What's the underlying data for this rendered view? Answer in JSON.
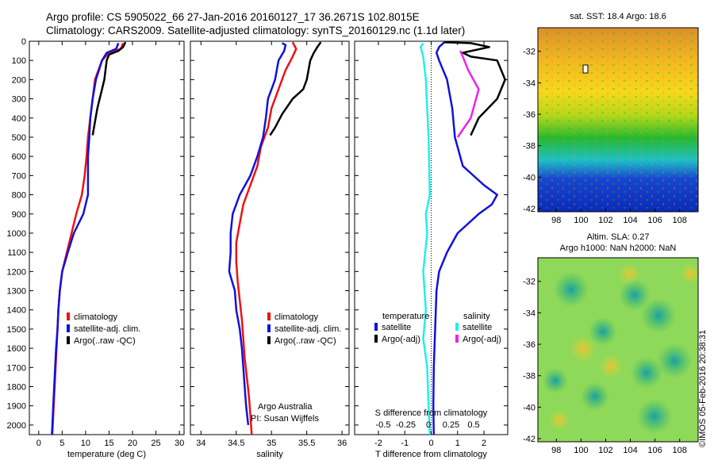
{
  "header": {
    "line1": "Argo profile: CS 5905022_66 27-Jan-2016 20160127_17 36.2671S 102.8015E",
    "line2": "Climatology: CARS2009. Satellite-adjusted climatology: synTS_20160129.nc (1.1d later)"
  },
  "credit": "©IMOS 05-Feb-2016 20:38:31",
  "colors": {
    "climatology": "#ee1111",
    "satellite": "#1111dd",
    "argo": "#000000",
    "argo_salinity_diff": "#ee22ee",
    "satellite_salinity_diff": "#22eeee"
  },
  "chart_data": [
    {
      "type": "line",
      "name": "temperature-profile",
      "xlabel": "temperature (deg C)",
      "xlim": [
        -2,
        31
      ],
      "xticks": [
        0,
        5,
        10,
        15,
        20,
        25,
        30
      ],
      "ylim": [
        2050,
        0
      ],
      "yticks": [
        0,
        100,
        200,
        300,
        400,
        500,
        600,
        700,
        800,
        900,
        1000,
        1100,
        1200,
        1300,
        1400,
        1500,
        1600,
        1700,
        1800,
        1900,
        2000
      ],
      "legend": {
        "position": "lower-center",
        "entries": [
          "climatology",
          "satellite-adj. clim.",
          "Argo(..raw -QC)"
        ]
      },
      "series": [
        {
          "name": "climatology",
          "color": "#ee1111",
          "points": [
            [
              18,
              10
            ],
            [
              17.5,
              40
            ],
            [
              15,
              60
            ],
            [
              13.5,
              100
            ],
            [
              12,
              200
            ],
            [
              11.5,
              300
            ],
            [
              11,
              400
            ],
            [
              10.5,
              500
            ],
            [
              10.2,
              600
            ],
            [
              9.8,
              700
            ],
            [
              9.2,
              800
            ],
            [
              8,
              900
            ],
            [
              7,
              1000
            ],
            [
              6,
              1100
            ],
            [
              5,
              1200
            ],
            [
              4.5,
              1300
            ],
            [
              4.2,
              1400
            ],
            [
              4,
              1500
            ],
            [
              3.8,
              1600
            ],
            [
              3.6,
              1700
            ],
            [
              3.4,
              1800
            ],
            [
              3.2,
              1900
            ],
            [
              3,
              2000
            ],
            [
              2.9,
              2050
            ]
          ]
        },
        {
          "name": "satellite-adj. clim.",
          "color": "#1111dd",
          "points": [
            [
              17,
              10
            ],
            [
              16.5,
              40
            ],
            [
              14.5,
              60
            ],
            [
              13.5,
              100
            ],
            [
              12.2,
              200
            ],
            [
              11.5,
              300
            ],
            [
              11,
              400
            ],
            [
              10.8,
              500
            ],
            [
              10.5,
              600
            ],
            [
              10.5,
              700
            ],
            [
              10.5,
              800
            ],
            [
              9.5,
              900
            ],
            [
              7.5,
              1000
            ],
            [
              6.2,
              1100
            ],
            [
              5,
              1200
            ],
            [
              4.5,
              1300
            ],
            [
              4.2,
              1400
            ],
            [
              4,
              1500
            ],
            [
              3.7,
              1600
            ],
            [
              3.5,
              1700
            ],
            [
              3.3,
              1800
            ],
            [
              3.1,
              1900
            ],
            [
              2.9,
              2000
            ],
            [
              2.8,
              2050
            ]
          ]
        },
        {
          "name": "Argo(..raw -QC)",
          "color": "#000000",
          "points": [
            [
              18.5,
              5
            ],
            [
              18,
              30
            ],
            [
              17,
              50
            ],
            [
              15,
              70
            ],
            [
              14.5,
              100
            ],
            [
              14,
              200
            ],
            [
              13.5,
              250
            ],
            [
              13,
              300
            ],
            [
              12.5,
              350
            ],
            [
              12,
              420
            ],
            [
              11.5,
              490
            ]
          ]
        }
      ]
    },
    {
      "type": "line",
      "name": "salinity-profile",
      "xlabel": "salinity",
      "xlim": [
        33.85,
        36.1
      ],
      "xticks": [
        34,
        34.5,
        35,
        35.5,
        36
      ],
      "ylim": [
        2050,
        0
      ],
      "legend": {
        "position": "lower-center",
        "entries": [
          "climatology",
          "satellite-adj. clim.",
          "Argo(..raw -QC)"
        ]
      },
      "annotation": [
        "Argo Australia",
        "PI: Susan Wijffels"
      ],
      "series": [
        {
          "name": "climatology",
          "color": "#ee1111",
          "points": [
            [
              35.3,
              5
            ],
            [
              35.35,
              40
            ],
            [
              35.3,
              80
            ],
            [
              35.2,
              150
            ],
            [
              35.1,
              250
            ],
            [
              35,
              350
            ],
            [
              34.95,
              450
            ],
            [
              34.85,
              550
            ],
            [
              34.8,
              650
            ],
            [
              34.7,
              750
            ],
            [
              34.6,
              850
            ],
            [
              34.55,
              950
            ],
            [
              34.5,
              1050
            ],
            [
              34.5,
              1150
            ],
            [
              34.52,
              1250
            ],
            [
              34.55,
              1350
            ],
            [
              34.58,
              1450
            ],
            [
              34.6,
              1550
            ],
            [
              34.62,
              1650
            ],
            [
              34.65,
              1750
            ],
            [
              34.68,
              1850
            ],
            [
              34.7,
              1950
            ],
            [
              34.72,
              2050
            ]
          ]
        },
        {
          "name": "satellite-adj. clim.",
          "color": "#1111dd",
          "points": [
            [
              35.15,
              10
            ],
            [
              35.2,
              20
            ],
            [
              35.18,
              50
            ],
            [
              35.1,
              100
            ],
            [
              35.05,
              200
            ],
            [
              34.95,
              300
            ],
            [
              34.92,
              400
            ],
            [
              34.88,
              500
            ],
            [
              34.8,
              600
            ],
            [
              34.7,
              700
            ],
            [
              34.55,
              800
            ],
            [
              34.45,
              900
            ],
            [
              34.42,
              1000
            ],
            [
              34.42,
              1100
            ],
            [
              34.4,
              1200
            ],
            [
              34.48,
              1300
            ],
            [
              34.5,
              1400
            ],
            [
              34.55,
              1500
            ],
            [
              34.58,
              1600
            ],
            [
              34.6,
              1700
            ],
            [
              34.62,
              1800
            ],
            [
              34.64,
              1900
            ],
            [
              34.67,
              2000
            ]
          ]
        },
        {
          "name": "Argo(..raw -QC)",
          "color": "#000000",
          "points": [
            [
              35.7,
              5
            ],
            [
              35.65,
              30
            ],
            [
              35.6,
              60
            ],
            [
              35.55,
              100
            ],
            [
              35.5,
              200
            ],
            [
              35.45,
              250
            ],
            [
              35.3,
              300
            ],
            [
              35.15,
              380
            ],
            [
              35.05,
              450
            ],
            [
              34.98,
              490
            ]
          ]
        }
      ]
    },
    {
      "type": "line",
      "name": "difference-profile",
      "xlabel": "T difference from climatology",
      "xlabel2": "S difference from climatology",
      "xlim": [
        -2.9,
        2.9
      ],
      "xticks": [
        -2,
        -1,
        0,
        1,
        2
      ],
      "xticks2_labels": [
        "-0.5",
        "-0.25",
        "0",
        "0.25",
        "0.5"
      ],
      "ylim": [
        2050,
        0
      ],
      "legend": {
        "position": "lower-center",
        "temperature_title": "temperature",
        "salinity_title": "salinity",
        "temperature_entries": [
          "satellite",
          "Argo(-adj)"
        ],
        "salinity_entries": [
          "satellite",
          "Argo(-adj)"
        ]
      },
      "series": [
        {
          "name": "temperature satellite",
          "color": "#1111dd",
          "points": [
            [
              0.5,
              5
            ],
            [
              0.3,
              30
            ],
            [
              0.2,
              60
            ],
            [
              0.3,
              100
            ],
            [
              0.6,
              200
            ],
            [
              0.8,
              350
            ],
            [
              0.9,
              500
            ],
            [
              1.2,
              650
            ],
            [
              2,
              750
            ],
            [
              2.5,
              800
            ],
            [
              2.3,
              850
            ],
            [
              1.8,
              900
            ],
            [
              1,
              1000
            ],
            [
              0.6,
              1100
            ],
            [
              0.3,
              1200
            ],
            [
              0.2,
              1300
            ],
            [
              0.15,
              1500
            ],
            [
              0.1,
              1700
            ],
            [
              0.08,
              1900
            ],
            [
              0.1,
              2050
            ]
          ]
        },
        {
          "name": "temperature Argo(-adj)",
          "color": "#000000",
          "points": [
            [
              0.5,
              5
            ],
            [
              1.5,
              10
            ],
            [
              2.2,
              30
            ],
            [
              1.2,
              60
            ],
            [
              1.5,
              80
            ],
            [
              2.5,
              100
            ],
            [
              2.8,
              200
            ],
            [
              2.5,
              300
            ],
            [
              1.8,
              400
            ],
            [
              1.5,
              490
            ]
          ]
        },
        {
          "name": "salinity satellite",
          "color": "#22eeee",
          "points": [
            [
              -0.3,
              10
            ],
            [
              -0.4,
              30
            ],
            [
              -0.3,
              80
            ],
            [
              -0.2,
              200
            ],
            [
              -0.1,
              500
            ],
            [
              -0.05,
              800
            ],
            [
              -0.2,
              900
            ],
            [
              -0.15,
              1000
            ],
            [
              -0.3,
              1200
            ],
            [
              -0.2,
              1400
            ],
            [
              -0.3,
              1550
            ],
            [
              -0.15,
              1700
            ],
            [
              -0.1,
              1900
            ],
            [
              -0.05,
              2050
            ]
          ]
        },
        {
          "name": "salinity Argo(-adj)",
          "color": "#ee22ee",
          "points": [
            [
              1.1,
              50
            ],
            [
              1.2,
              80
            ],
            [
              1.4,
              150
            ],
            [
              1.8,
              250
            ],
            [
              1.5,
              400
            ],
            [
              1,
              500
            ]
          ]
        }
      ]
    },
    {
      "type": "heatmap",
      "name": "sst-map",
      "title": "sat. SST: 18.4 Argo: 18.6",
      "xticks": [
        "98",
        "100",
        "102",
        "104",
        "106",
        "108"
      ],
      "yticks": [
        "-32",
        "-34",
        "-36",
        "-38",
        "-40",
        "-42"
      ],
      "xlim": [
        96.5,
        109.5
      ],
      "ylim": [
        -42.2,
        -30.5
      ]
    },
    {
      "type": "heatmap",
      "name": "sla-map",
      "title": "Altim. SLA: 0.27",
      "subtitle": "Argo h1000: NaN h2000: NaN",
      "xticks": [
        "98",
        "100",
        "102",
        "104",
        "106",
        "108"
      ],
      "yticks": [
        "-32",
        "-34",
        "-36",
        "-38",
        "-40",
        "-42"
      ],
      "xlim": [
        96.5,
        109.5
      ],
      "ylim": [
        -42.2,
        -30.5
      ]
    }
  ]
}
